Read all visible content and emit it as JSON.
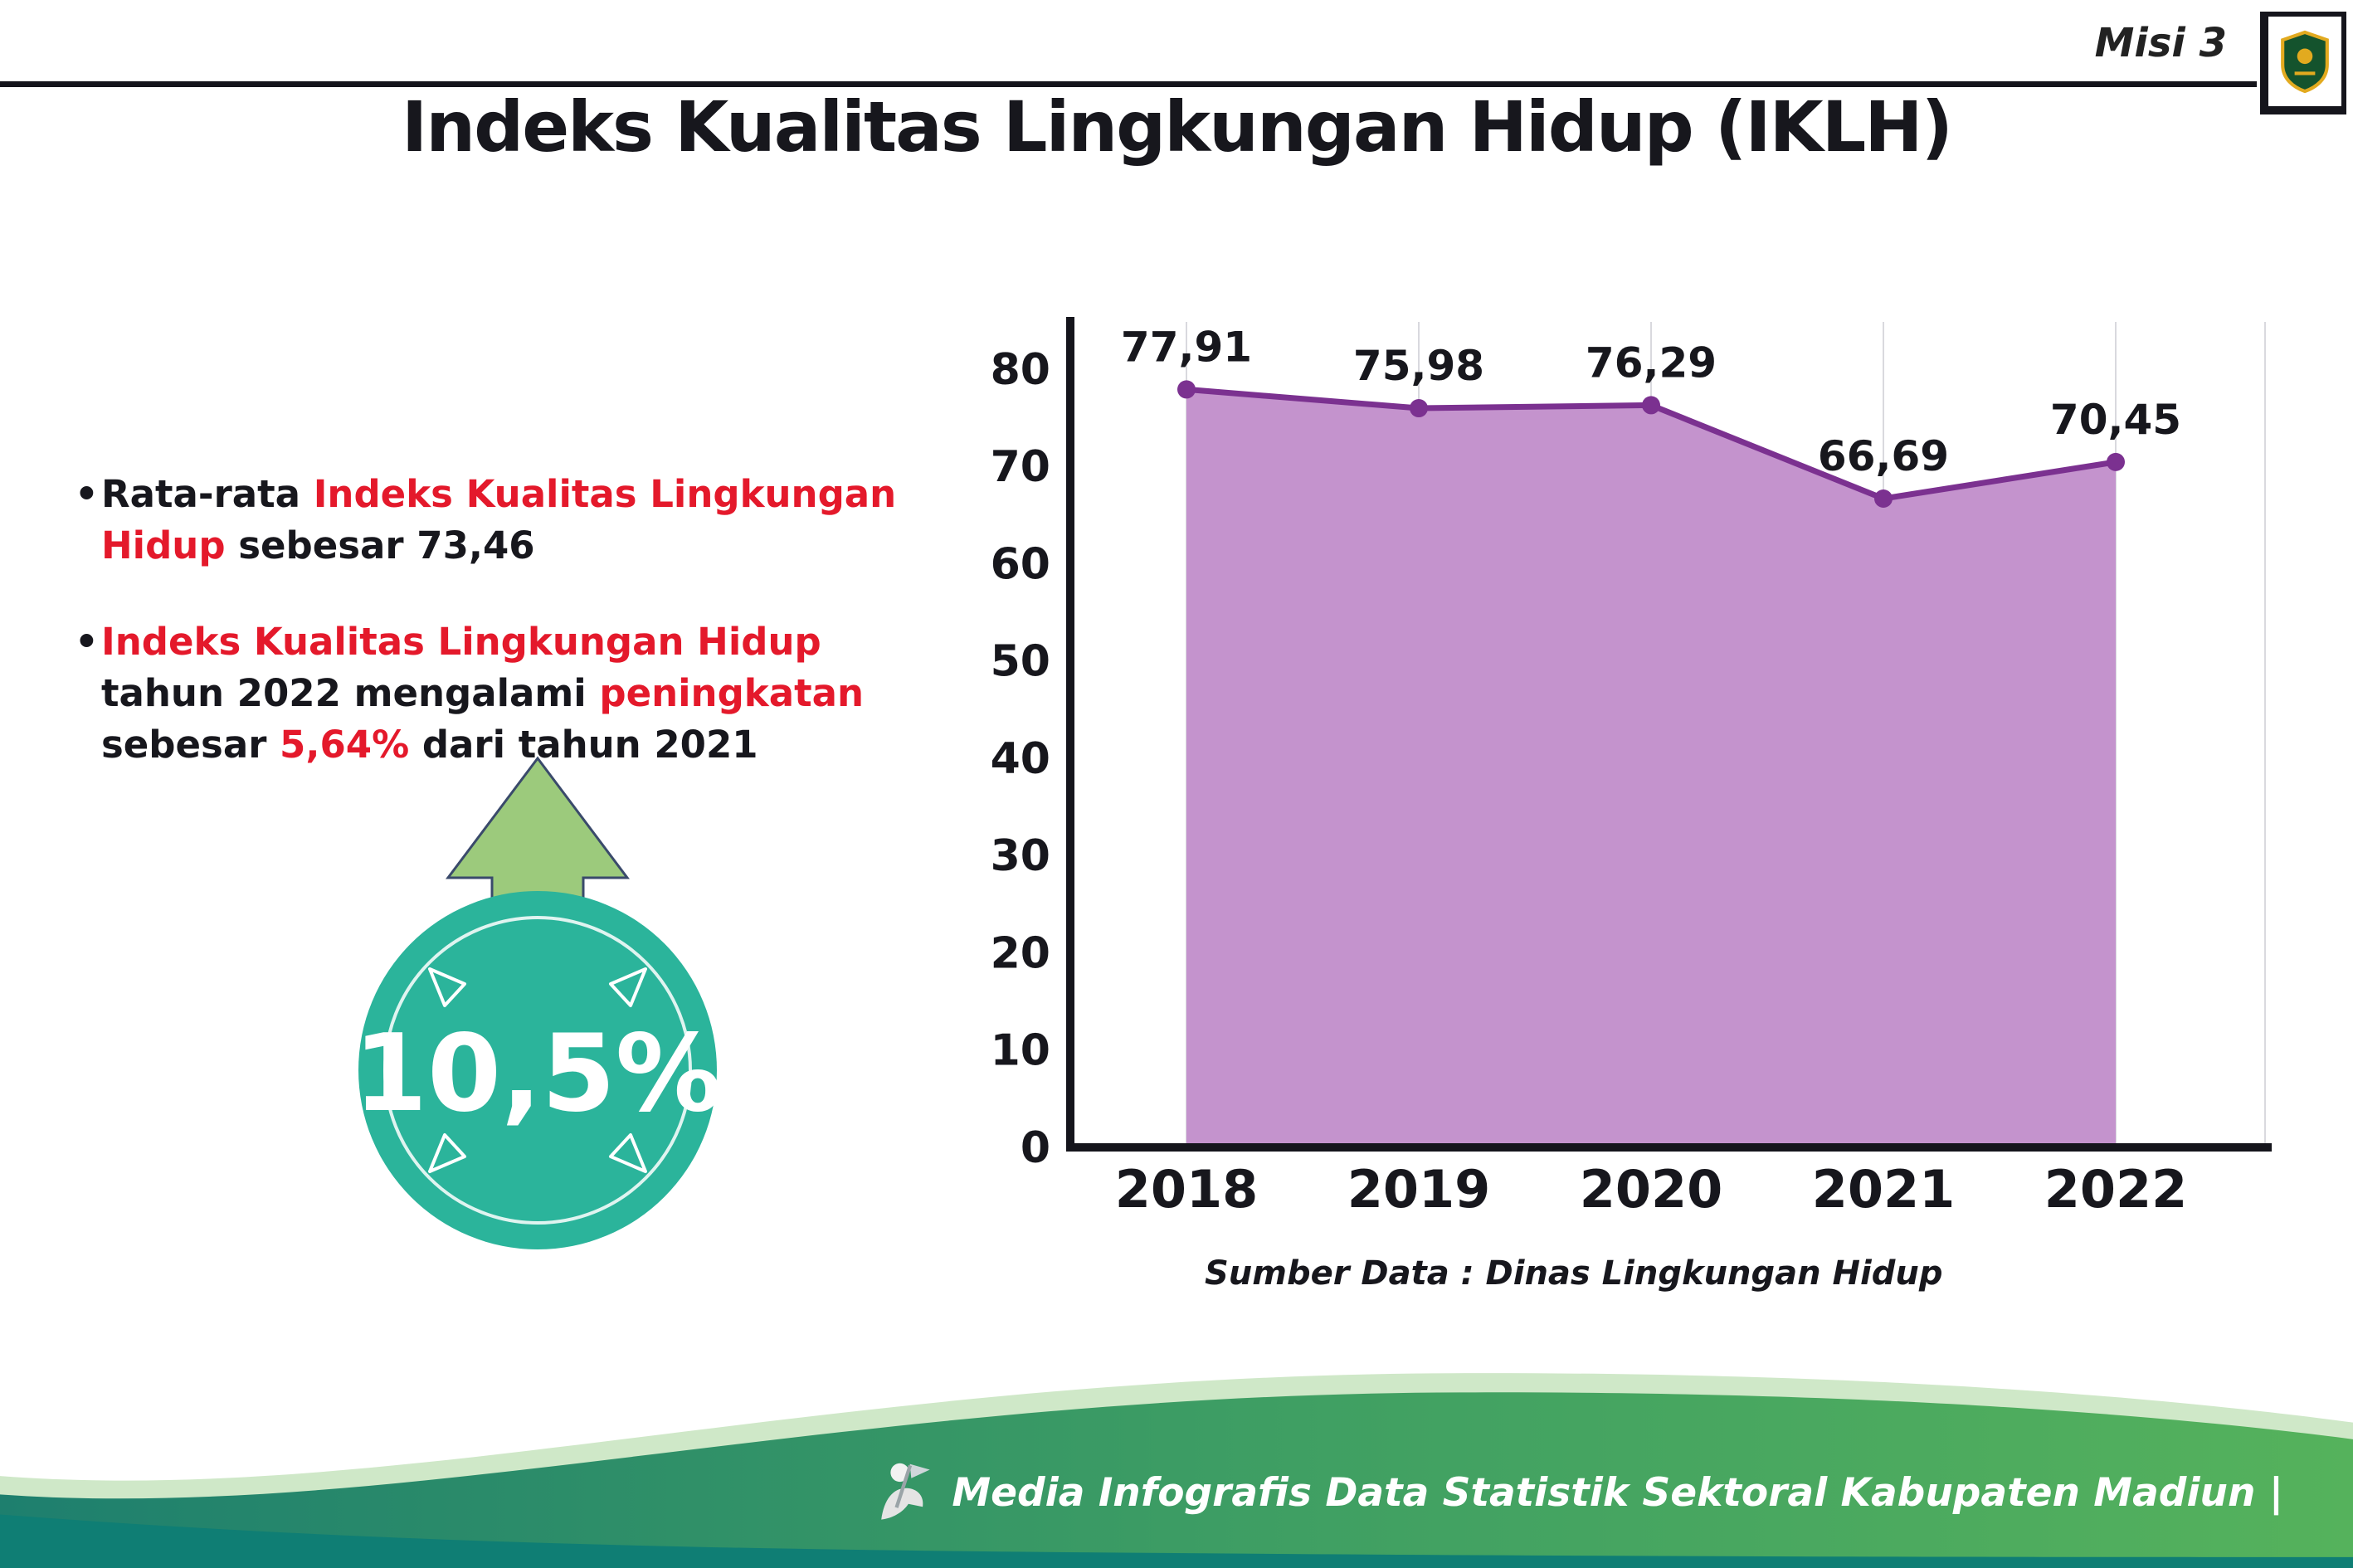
{
  "header": {
    "misi_label": "Misi 3",
    "title": "Indeks Kualitas Lingkungan Hidup (IKLH)"
  },
  "icons": {
    "logo": "kabupaten-madiun-shield-logo",
    "mascot": "infographic-mascot-icon",
    "badge_arrow": "arrow-up-icon"
  },
  "bullets": [
    {
      "segments": [
        {
          "text": "Rata-rata "
        },
        {
          "text": "Indeks Kualitas Lingkungan Hidup",
          "highlight": true
        },
        {
          "text": " sebesar 73,46"
        }
      ]
    },
    {
      "segments": [
        {
          "text": "Indeks Kualitas Lingkungan Hidup",
          "highlight": true
        },
        {
          "text": " tahun 2022 mengalami "
        },
        {
          "text": "peningkatan",
          "highlight": true
        },
        {
          "text": " sebesar "
        },
        {
          "text": "5,64%",
          "highlight": true
        },
        {
          "text": " dari tahun 2021"
        }
      ]
    }
  ],
  "badge": {
    "value": "10,5%"
  },
  "chart_data": {
    "type": "area",
    "title": "Indeks Kualitas Lingkungan Hidup (IKLH)",
    "categories": [
      "2018",
      "2019",
      "2020",
      "2021",
      "2022"
    ],
    "values": [
      77.91,
      75.98,
      76.29,
      66.69,
      70.45
    ],
    "value_labels": [
      "77,91",
      "75,98",
      "76,29",
      "66,69",
      "70,45"
    ],
    "xlabel": "",
    "ylabel": "",
    "ylim": [
      0,
      80
    ],
    "yticks": [
      0,
      10,
      20,
      30,
      40,
      50,
      60,
      70,
      80
    ],
    "grid": "vertical",
    "legend": "none",
    "line_color": "#7b3190",
    "fill_color": "#c493cd",
    "source": "Sumber Data : Dinas Lingkungan Hidup"
  },
  "footer": {
    "text": "Media Infografis Data Statistik Sektoral Kabupaten Madiun |"
  },
  "colors": {
    "accent_red": "#e4192b",
    "badge_teal": "#2bb49b",
    "arrow_green": "#9cca7c",
    "chart_line": "#7b3190",
    "chart_fill": "#c493cd",
    "footer_dark_teal": "#0f7e74"
  }
}
